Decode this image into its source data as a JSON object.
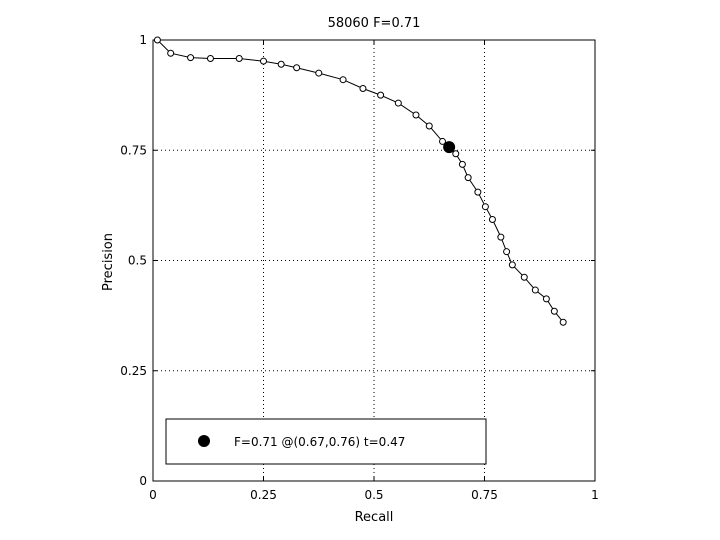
{
  "chart_data": {
    "type": "line",
    "title": "58060 F=0.71",
    "xlabel": "Recall",
    "ylabel": "Precision",
    "xlim": [
      0,
      1
    ],
    "ylim": [
      0,
      1
    ],
    "grid": true,
    "legend_placement": "bottom",
    "x_ticks": [
      0,
      0.25,
      0.5,
      0.75,
      1
    ],
    "y_ticks": [
      0,
      0.25,
      0.5,
      0.75,
      1
    ],
    "x_tick_labels": [
      "0",
      "0.25",
      "0.5",
      "0.75",
      "1"
    ],
    "y_tick_labels": [
      "0",
      "0.25",
      "0.5",
      "0.75",
      "1"
    ],
    "series": [
      {
        "x": [
          0.01,
          0.04,
          0.085,
          0.13,
          0.195,
          0.25,
          0.29,
          0.325,
          0.375,
          0.43,
          0.475,
          0.515,
          0.555,
          0.595,
          0.625,
          0.655,
          0.685,
          0.7,
          0.713,
          0.735,
          0.752,
          0.768,
          0.787,
          0.8,
          0.813,
          0.84,
          0.865,
          0.89,
          0.908,
          0.928
        ],
        "y": [
          1.0,
          0.97,
          0.96,
          0.958,
          0.958,
          0.952,
          0.945,
          0.937,
          0.925,
          0.91,
          0.89,
          0.875,
          0.857,
          0.83,
          0.805,
          0.77,
          0.742,
          0.718,
          0.688,
          0.655,
          0.622,
          0.593,
          0.553,
          0.52,
          0.49,
          0.462,
          0.433,
          0.413,
          0.385,
          0.36
        ]
      }
    ],
    "highlight_point": {
      "x": 0.67,
      "y": 0.757
    },
    "legend": {
      "label": "F=0.71 @(0.67,0.76) t=0.47"
    }
  }
}
